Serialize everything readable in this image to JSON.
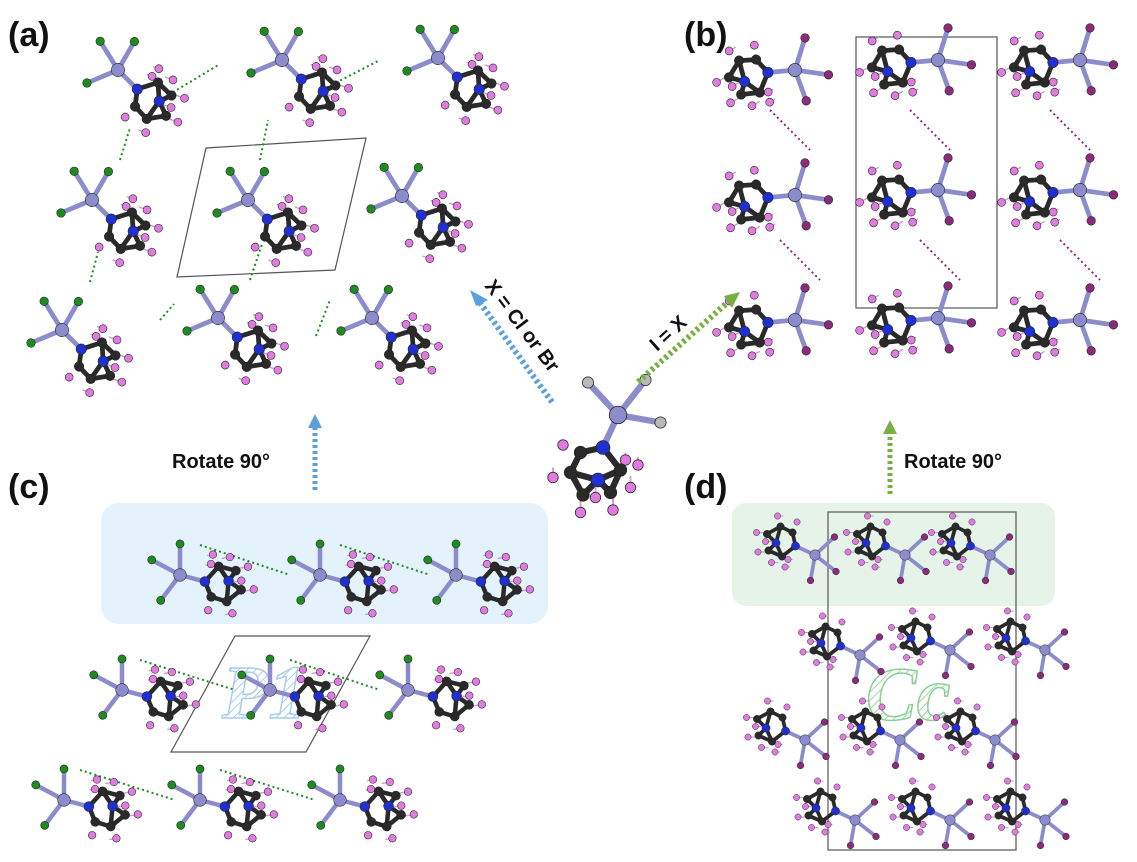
{
  "figure": {
    "panel_labels": {
      "a": "(a)",
      "b": "(b)",
      "c": "(c)",
      "d": "(d)"
    },
    "arrows": {
      "left_diagonal": "X = Cl or Br",
      "right_diagonal": "I = X",
      "rotate_left": "Rotate 90°",
      "rotate_right": "Rotate 90°"
    },
    "space_groups": {
      "left": "P1",
      "right": "Cc"
    },
    "colors": {
      "blue_arrow": "#5aa0dd",
      "green_arrow": "#77b041",
      "chlorine": "#1f8a1f",
      "iodine": "#8c2b7a",
      "metal": "#8c8ccc",
      "nitrogen": "#2030d0",
      "carbon": "#2a2a2a",
      "hydrogen": "#e07be0",
      "halogen_generic": "#b8b8b8",
      "highlight_left": "#e3f2fb",
      "highlight_right": "#e5f3e9"
    },
    "atom_roles": {
      "metal": "metal-atom",
      "nitrogen": "nitrogen-atom",
      "carbon": "carbon-atom",
      "hydrogen": "hydrogen-atom",
      "halogen": "halogen-atom"
    }
  }
}
